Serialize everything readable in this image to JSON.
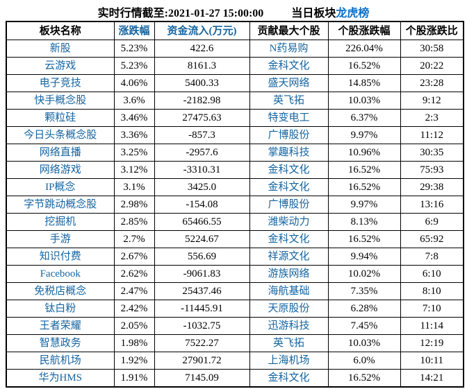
{
  "title": {
    "realtime": "实时行情截至:2021-01-27 15:00:00",
    "daily_prefix": "当日板块",
    "longhu_link": "龙虎榜"
  },
  "colors": {
    "background": "#ffffff",
    "border": "#000000",
    "text": "#000000",
    "cell_link_blue": "#1464a0",
    "title_link_blue": "#0b6fc8"
  },
  "table": {
    "headers": [
      "板块名称",
      "涨跌幅",
      "资金流入(万元)",
      "贡献最大个股",
      "个股涨跌幅",
      "个股涨跌比"
    ],
    "rows": [
      [
        "新股",
        "5.23%",
        "422.6",
        "N药易购",
        "226.04%",
        "30:58"
      ],
      [
        "云游戏",
        "5.23%",
        "8161.3",
        "金科文化",
        "16.52%",
        "20:22"
      ],
      [
        "电子竞技",
        "4.06%",
        "5400.33",
        "盛天网络",
        "14.85%",
        "23:28"
      ],
      [
        "快手概念股",
        "3.6%",
        "-2182.98",
        "英飞拓",
        "10.03%",
        "9:12"
      ],
      [
        "颗粒硅",
        "3.46%",
        "27475.63",
        "特变电工",
        "6.37%",
        "2:3"
      ],
      [
        "今日头条概念股",
        "3.36%",
        "-857.3",
        "广博股份",
        "9.97%",
        "11:12"
      ],
      [
        "网络直播",
        "3.25%",
        "-2957.6",
        "掌趣科技",
        "10.96%",
        "30:35"
      ],
      [
        "网络游戏",
        "3.12%",
        "-3310.31",
        "金科文化",
        "16.52%",
        "75:93"
      ],
      [
        "IP概念",
        "3.1%",
        "3425.0",
        "金科文化",
        "16.52%",
        "29:38"
      ],
      [
        "字节跳动概念股",
        "2.98%",
        "-154.08",
        "广博股份",
        "9.97%",
        "13:16"
      ],
      [
        "挖掘机",
        "2.85%",
        "65466.55",
        "潍柴动力",
        "8.13%",
        "6:9"
      ],
      [
        "手游",
        "2.7%",
        "5224.67",
        "金科文化",
        "16.52%",
        "65:92"
      ],
      [
        "知识付费",
        "2.67%",
        "556.69",
        "祥源文化",
        "9.94%",
        "7:8"
      ],
      [
        "Facebook",
        "2.62%",
        "-9061.83",
        "游族网络",
        "10.02%",
        "6:10"
      ],
      [
        "免税店概念",
        "2.47%",
        "25437.46",
        "海航基础",
        "7.35%",
        "8:10"
      ],
      [
        "钛白粉",
        "2.42%",
        "-11445.91",
        "天原股份",
        "6.28%",
        "7:10"
      ],
      [
        "王者荣耀",
        "2.05%",
        "-1032.75",
        "迅游科技",
        "7.45%",
        "11:14"
      ],
      [
        "智慧政务",
        "1.98%",
        "7522.27",
        "英飞拓",
        "10.03%",
        "12:19"
      ],
      [
        "民航机场",
        "1.92%",
        "27901.72",
        "上海机场",
        "6.0%",
        "10:11"
      ],
      [
        "华为HMS",
        "1.91%",
        "7145.09",
        "金科文化",
        "16.52%",
        "14:21"
      ]
    ]
  }
}
